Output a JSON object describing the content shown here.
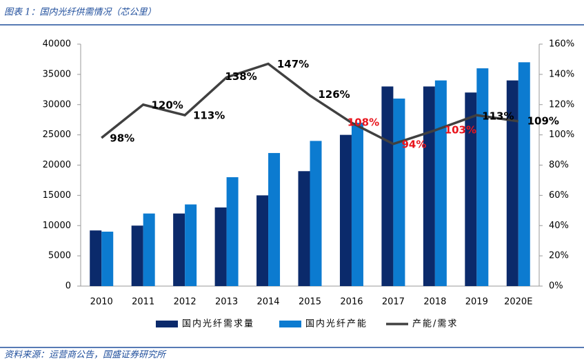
{
  "header": "图表 1：国内光纤供需情况（芯公里）",
  "source": "资料来源：运营商公告，国盛证券研究所",
  "chart_data": {
    "type": "bar",
    "categories": [
      "2010",
      "2011",
      "2012",
      "2013",
      "2014",
      "2015",
      "2016",
      "2017",
      "2018",
      "2019",
      "2020E"
    ],
    "series": [
      {
        "name": "国内光纤需求量",
        "color": "#0b2a6b",
        "values": [
          9200,
          10000,
          12000,
          13000,
          15000,
          19000,
          25000,
          33000,
          33000,
          32000,
          34000
        ]
      },
      {
        "name": "国内光纤产能",
        "color": "#0c7bd0",
        "values": [
          9000,
          12000,
          13500,
          18000,
          22000,
          24000,
          27000,
          31000,
          34000,
          36000,
          37000
        ]
      },
      {
        "name": "产能/需求",
        "type": "line",
        "axis": "y2",
        "color": "#404040",
        "values": [
          98,
          120,
          113,
          138,
          147,
          126,
          108,
          94,
          103,
          113,
          109
        ],
        "value_labels": [
          "98%",
          "120%",
          "113%",
          "138%",
          "147%",
          "126%",
          "108%",
          "94%",
          "103%",
          "113%",
          "109%"
        ],
        "value_label_colors": [
          "#000000",
          "#000000",
          "#000000",
          "#000000",
          "#000000",
          "#000000",
          "#e8141c",
          "#e8141c",
          "#e8141c",
          "#000000",
          "#000000"
        ]
      }
    ],
    "ylim": [
      0,
      40000
    ],
    "yticks": [
      0,
      5000,
      10000,
      15000,
      20000,
      25000,
      30000,
      35000,
      40000
    ],
    "y2lim": [
      0,
      160
    ],
    "y2ticks": [
      {
        "value": 0,
        "label": "0%"
      },
      {
        "value": 20,
        "label": "20%"
      },
      {
        "value": 40,
        "label": "40%"
      },
      {
        "value": 60,
        "label": "60%"
      },
      {
        "value": 80,
        "label": "80%"
      },
      {
        "value": 100,
        "label": "100%"
      },
      {
        "value": 120,
        "label": "120%"
      },
      {
        "value": 140,
        "label": "140%"
      },
      {
        "value": 160,
        "label": "160%"
      }
    ],
    "legend": "bottom",
    "grid": false
  }
}
